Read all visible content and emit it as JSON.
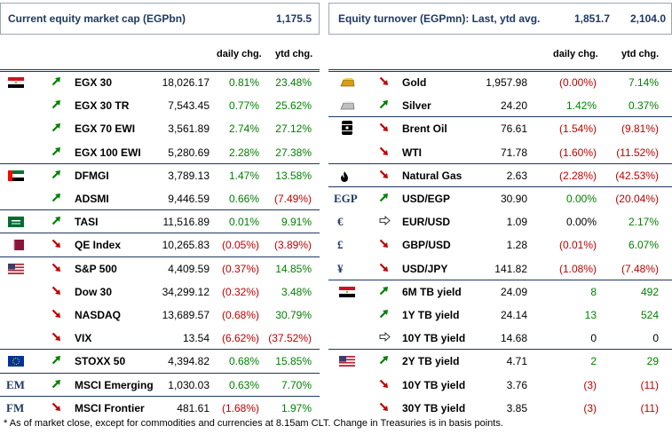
{
  "left_header": {
    "title": "Current equity market cap (EGPbn)",
    "value": "1,175.5"
  },
  "right_header": {
    "title": "Equity turnover (EGPmn): Last, ytd avg.",
    "last": "1,851.7",
    "ytd": "2,104.0"
  },
  "col_headers": {
    "daily": "daily chg.",
    "ytd": "ytd chg."
  },
  "left_rows": [
    {
      "icon": "egypt-flag-icon",
      "arrow": "up",
      "name": "EGX 30",
      "value": "18,026.17",
      "daily": "0.81%",
      "ytd": "23.48%",
      "ds": "pos",
      "ys": "pos"
    },
    {
      "icon": "",
      "arrow": "up",
      "name": "EGX 30 TR",
      "value": "7,543.45",
      "daily": "0.77%",
      "ytd": "25.62%",
      "ds": "pos",
      "ys": "pos"
    },
    {
      "icon": "",
      "arrow": "up",
      "name": "EGX 70 EWI",
      "value": "3,561.89",
      "daily": "2.74%",
      "ytd": "27.12%",
      "ds": "pos",
      "ys": "pos"
    },
    {
      "icon": "",
      "arrow": "up",
      "name": "EGX 100 EWI",
      "value": "5,280.69",
      "daily": "2.28%",
      "ytd": "27.38%",
      "ds": "pos",
      "ys": "pos"
    },
    {
      "icon": "uae-flag-icon",
      "arrow": "up",
      "name": "DFMGI",
      "value": "3,789.13",
      "daily": "1.47%",
      "ytd": "13.58%",
      "ds": "pos",
      "ys": "pos"
    },
    {
      "icon": "",
      "arrow": "up",
      "name": "ADSMI",
      "value": "9,446.59",
      "daily": "0.66%",
      "ytd": "(7.49%)",
      "ds": "pos",
      "ys": "neg"
    },
    {
      "icon": "saudi-flag-icon",
      "arrow": "up",
      "name": "TASI",
      "value": "11,516.89",
      "daily": "0.01%",
      "ytd": "9.91%",
      "ds": "pos",
      "ys": "pos"
    },
    {
      "icon": "qatar-flag-icon",
      "arrow": "down",
      "name": "QE Index",
      "value": "10,265.83",
      "daily": "(0.05%)",
      "ytd": "(3.89%)",
      "ds": "neg",
      "ys": "neg"
    },
    {
      "icon": "us-flag-icon",
      "arrow": "down",
      "name": "S&P 500",
      "value": "4,409.59",
      "daily": "(0.37%)",
      "ytd": "14.85%",
      "ds": "neg",
      "ys": "pos"
    },
    {
      "icon": "",
      "arrow": "down",
      "name": "Dow 30",
      "value": "34,299.12",
      "daily": "(0.32%)",
      "ytd": "3.48%",
      "ds": "neg",
      "ys": "pos"
    },
    {
      "icon": "",
      "arrow": "down",
      "name": "NASDAQ",
      "value": "13,689.57",
      "daily": "(0.68%)",
      "ytd": "30.79%",
      "ds": "neg",
      "ys": "pos"
    },
    {
      "icon": "",
      "arrow": "down",
      "name": "VIX",
      "value": "13.54",
      "daily": "(6.62%)",
      "ytd": "(37.52%)",
      "ds": "neg",
      "ys": "neg"
    },
    {
      "icon": "eu-flag-icon",
      "arrow": "up",
      "name": "STOXX 50",
      "value": "4,394.82",
      "daily": "0.68%",
      "ytd": "15.85%",
      "ds": "pos",
      "ys": "pos"
    },
    {
      "icon": "em-code-icon",
      "code": "EM",
      "arrow": "up",
      "name": "MSCI Emerging",
      "value": "1,030.03",
      "daily": "0.63%",
      "ytd": "7.70%",
      "ds": "pos",
      "ys": "pos"
    },
    {
      "icon": "fm-code-icon",
      "code": "FM",
      "arrow": "down",
      "name": "MSCI Frontier",
      "value": "481.61",
      "daily": "(1.68%)",
      "ytd": "1.97%",
      "ds": "neg",
      "ys": "pos"
    }
  ],
  "right_rows": [
    {
      "icon": "gold-bar-icon",
      "arrow": "down",
      "name": "Gold",
      "value": "1,957.98",
      "daily": "(0.00%)",
      "ytd": "7.14%",
      "ds": "neg",
      "ys": "pos"
    },
    {
      "icon": "silver-bar-icon",
      "arrow": "up",
      "name": "Silver",
      "value": "24.20",
      "daily": "1.42%",
      "ytd": "0.37%",
      "ds": "pos",
      "ys": "pos"
    },
    {
      "icon": "oil-barrel-icon",
      "arrow": "down",
      "name": "Brent Oil",
      "value": "76.61",
      "daily": "(1.54%)",
      "ytd": "(9.81%)",
      "ds": "neg",
      "ys": "neg"
    },
    {
      "icon": "",
      "arrow": "down",
      "name": "WTI",
      "value": "71.78",
      "daily": "(1.60%)",
      "ytd": "(11.52%)",
      "ds": "neg",
      "ys": "neg"
    },
    {
      "icon": "flame-icon",
      "arrow": "down",
      "name": "Natural Gas",
      "value": "2.63",
      "daily": "(2.28%)",
      "ytd": "(42.53%)",
      "ds": "neg",
      "ys": "neg"
    },
    {
      "icon": "egp-code-icon",
      "code": "EGP",
      "arrow": "up",
      "name": "USD/EGP",
      "value": "30.90",
      "daily": "0.00%",
      "ytd": "(20.04%)",
      "ds": "pos",
      "ys": "neg"
    },
    {
      "icon": "euro-icon",
      "code": "€",
      "arrow": "flat",
      "name": "EUR/USD",
      "value": "1.09",
      "daily": "0.00%",
      "ytd": "2.17%",
      "ds": "zero",
      "ys": "pos"
    },
    {
      "icon": "pound-icon",
      "code": "£",
      "arrow": "down",
      "name": "GBP/USD",
      "value": "1.28",
      "daily": "(0.01%)",
      "ytd": "6.07%",
      "ds": "neg",
      "ys": "pos"
    },
    {
      "icon": "yen-icon",
      "code": "¥",
      "arrow": "down",
      "name": "USD/JPY",
      "value": "141.82",
      "daily": "(1.08%)",
      "ytd": "(7.48%)",
      "ds": "neg",
      "ys": "neg"
    },
    {
      "icon": "egypt-flag-icon",
      "arrow": "up",
      "name": "6M TB yield",
      "value": "24.09",
      "daily": "8",
      "ytd": "492",
      "ds": "pos",
      "ys": "pos"
    },
    {
      "icon": "",
      "arrow": "up",
      "name": "1Y TB yield",
      "value": "24.14",
      "daily": "13",
      "ytd": "524",
      "ds": "pos",
      "ys": "pos"
    },
    {
      "icon": "",
      "arrow": "flat",
      "name": "10Y TB yield",
      "value": "14.68",
      "daily": "0",
      "ytd": "0",
      "ds": "zero",
      "ys": "zero"
    },
    {
      "icon": "us-flag-icon",
      "arrow": "up",
      "name": "2Y TB yield",
      "value": "4.71",
      "daily": "2",
      "ytd": "29",
      "ds": "pos",
      "ys": "pos"
    },
    {
      "icon": "",
      "arrow": "down",
      "name": "10Y TB yield",
      "value": "3.76",
      "daily": "(3)",
      "ytd": "(11)",
      "ds": "neg",
      "ys": "neg"
    },
    {
      "icon": "",
      "arrow": "down",
      "name": "30Y TB yield",
      "value": "3.85",
      "daily": "(3)",
      "ytd": "(11)",
      "ds": "neg",
      "ys": "neg"
    }
  ],
  "footnote": "* As of market close, except for commodities and currencies at 8.15am CLT. Change in Treasuries is in basis points."
}
